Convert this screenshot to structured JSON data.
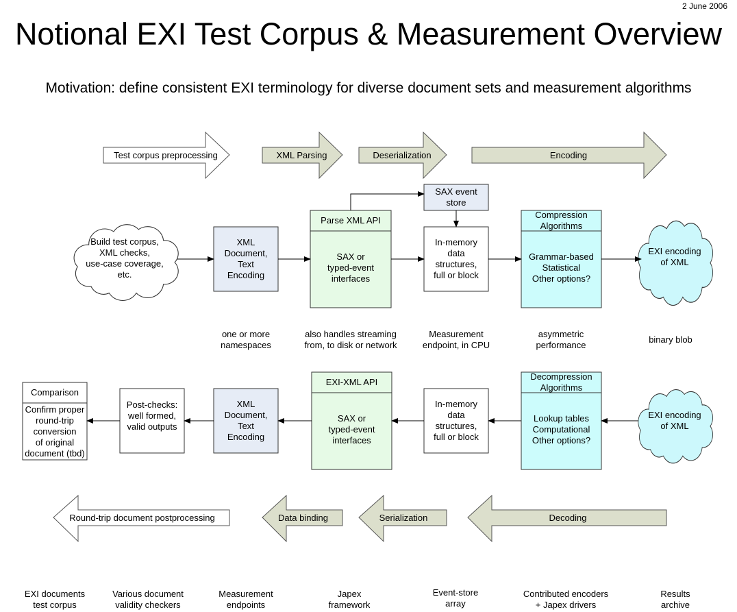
{
  "date": "2 June 2006",
  "title": "Notional EXI Test Corpus & Measurement Overview",
  "motivation": "Motivation:  define consistent EXI terminology for diverse document sets and measurement algorithms",
  "colors": {
    "phase_arrow": "#dcdfcc",
    "xml_document": "#e6ecf6",
    "api_box": "#e6fae6",
    "algorithm_box": "#ccfcfc",
    "exi_cloud": "#ccf8fc"
  },
  "top_phases": [
    "Test corpus preprocessing",
    "XML Parsing",
    "Deserialization",
    "Encoding"
  ],
  "bottom_phases": [
    "Round-trip document postprocessing",
    "Data binding",
    "Serialization",
    "Decoding"
  ],
  "encode_row": {
    "source_cloud": "Build test corpus,\nXML checks,\nuse-case coverage,\netc.",
    "xml_document": "XML\nDocument,\nText\nEncoding",
    "parse_api_header": "Parse XML API",
    "parse_api_body": "SAX or\ntyped-event\ninterfaces",
    "sax_event_store": "SAX event\nstore",
    "in_memory": "In-memory\ndata\nstructures,\nfull or block",
    "compression_header": "Compression\nAlgorithms",
    "compression_body": "Grammar-based\nStatistical\nOther options?",
    "exi_cloud": "EXI encoding\nof XML"
  },
  "encode_captions": [
    "one or more\nnamespaces",
    "also handles streaming\nfrom, to disk or network",
    "Measurement\nendpoint, in CPU",
    "asymmetric\nperformance",
    "binary blob"
  ],
  "decode_row": {
    "comparison_header": "Comparison",
    "comparison_body": "Confirm proper\nround-trip\nconversion\nof original\ndocument (tbd)",
    "post_checks": "Post-checks:\nwell formed,\nvalid outputs",
    "xml_document": "XML\nDocument,\nText\nEncoding",
    "api_header": "EXI-XML API",
    "api_body": "SAX or\ntyped-event\ninterfaces",
    "in_memory": "In-memory\ndata\nstructures,\nfull or block",
    "decompression_header": "Decompression\nAlgorithms",
    "decompression_body": "Lookup tables\nComputational\nOther options?",
    "exi_cloud": "EXI encoding\nof XML"
  },
  "footer_labels": [
    "EXI documents\ntest corpus",
    "Various document\nvalidity checkers",
    "Measurement\nendpoints",
    "Japex\nframework",
    "Event-store\narray",
    "Contributed encoders\n+ Japex drivers",
    "Results\narchive"
  ]
}
